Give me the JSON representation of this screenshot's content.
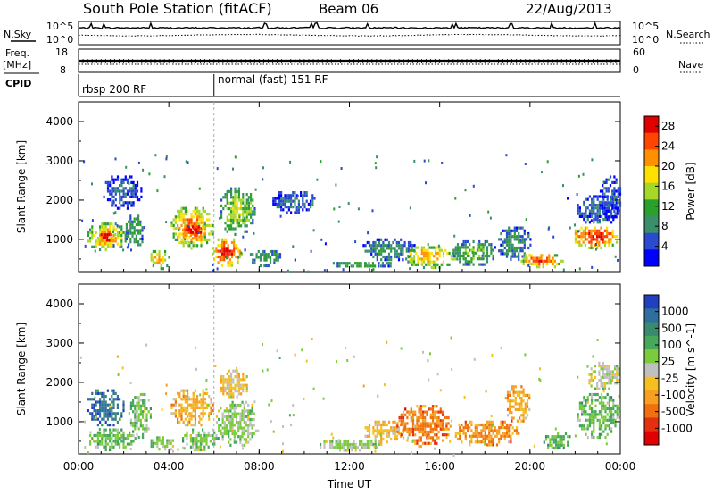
{
  "header": {
    "station": "South Pole Station (fitACF)",
    "beam": "Beam 06",
    "date": "22/Aug/2013"
  },
  "left_labels": {
    "nsky": "N.Sky",
    "freq_line1": "Freq.",
    "freq_line2": "[MHz]",
    "cpid": "CPID"
  },
  "right_labels": {
    "nsearch": "N.Search",
    "nave": "Nave"
  },
  "noise_panel": {
    "left_ticks": [
      "10^5",
      "10^0"
    ],
    "right_ticks": [
      "10^5",
      "10^0"
    ]
  },
  "freq_panel": {
    "left_ticks": [
      "18",
      "8"
    ],
    "right_ticks": [
      "60",
      "0"
    ]
  },
  "cpid_panel": {
    "modes": [
      {
        "label": "rbsp 200 RF",
        "start_hour": 0
      },
      {
        "label": "normal (fast) 151 RF",
        "start_hour": 6.0
      }
    ]
  },
  "colors": {
    "power_scale": [
      "#0000ff",
      "#2a4bd0",
      "#3a8f6a",
      "#2ca02c",
      "#a6d82a",
      "#ffe000",
      "#ff9000",
      "#ff4500",
      "#e00000"
    ],
    "velocity_scale": [
      "#2040c0",
      "#2e6fa0",
      "#3a8a6e",
      "#46a85a",
      "#7ccb3c",
      "#c0c0c0",
      "#f4c020",
      "#f5a020",
      "#f07010",
      "#e53010",
      "#e00000"
    ]
  },
  "chart_data": [
    {
      "type": "heatmap",
      "title": "",
      "xlabel": "",
      "ylabel": "Slant Range [km]",
      "xlim": [
        0,
        24
      ],
      "ylim": [
        180,
        4500
      ],
      "x_ticks": [
        "00:00",
        "04:00",
        "08:00",
        "12:00",
        "16:00",
        "20:00",
        "00:00"
      ],
      "y_ticks": [
        "1000",
        "2000",
        "3000",
        "4000"
      ],
      "colorbar": {
        "label": "Power [dB]",
        "ticks": [
          "4",
          "8",
          "12",
          "16",
          "20",
          "24",
          "28"
        ],
        "range": [
          0,
          30
        ]
      },
      "blobs": [
        {
          "t": [
            0.3,
            2.1
          ],
          "r": [
            700,
            1500
          ],
          "v": 18
        },
        {
          "t": [
            0.8,
            1.6
          ],
          "r": [
            900,
            1300
          ],
          "v": 26
        },
        {
          "t": [
            2.0,
            2.9
          ],
          "r": [
            800,
            1700
          ],
          "v": 10
        },
        {
          "t": [
            1.0,
            2.8
          ],
          "r": [
            1800,
            2700
          ],
          "v": 5
        },
        {
          "t": [
            3.1,
            4.0
          ],
          "r": [
            250,
            800
          ],
          "v": 18
        },
        {
          "t": [
            4.0,
            6.0
          ],
          "r": [
            800,
            1900
          ],
          "v": 20
        },
        {
          "t": [
            4.5,
            5.6
          ],
          "r": [
            1000,
            1500
          ],
          "v": 26
        },
        {
          "t": [
            5.8,
            7.2
          ],
          "r": [
            300,
            1100
          ],
          "v": 24
        },
        {
          "t": [
            6.2,
            7.8
          ],
          "r": [
            1100,
            2400
          ],
          "v": 14
        },
        {
          "t": [
            7.5,
            9.0
          ],
          "r": [
            350,
            800
          ],
          "v": 10
        },
        {
          "t": [
            8.5,
            10.5
          ],
          "r": [
            1700,
            2300
          ],
          "v": 6
        },
        {
          "t": [
            11.0,
            14.0
          ],
          "r": [
            300,
            500
          ],
          "v": 10
        },
        {
          "t": [
            12.5,
            15.0
          ],
          "r": [
            450,
            1100
          ],
          "v": 8
        },
        {
          "t": [
            14.3,
            16.8
          ],
          "r": [
            300,
            900
          ],
          "v": 18
        },
        {
          "t": [
            16.5,
            18.5
          ],
          "r": [
            350,
            1050
          ],
          "v": 12
        },
        {
          "t": [
            18.5,
            20.0
          ],
          "r": [
            500,
            1400
          ],
          "v": 8
        },
        {
          "t": [
            19.5,
            21.5
          ],
          "r": [
            300,
            700
          ],
          "v": 22
        },
        {
          "t": [
            21.8,
            24.0
          ],
          "r": [
            800,
            1400
          ],
          "v": 24
        },
        {
          "t": [
            22.0,
            24.0
          ],
          "r": [
            1400,
            2200
          ],
          "v": 6
        },
        {
          "t": [
            23.0,
            24.0
          ],
          "r": [
            1500,
            2700
          ],
          "v": 5
        }
      ]
    },
    {
      "type": "heatmap",
      "title": "",
      "xlabel": "Time UT",
      "ylabel": "Slant Range [km]",
      "xlim": [
        0,
        24
      ],
      "ylim": [
        180,
        4500
      ],
      "x_ticks": [
        "00:00",
        "04:00",
        "08:00",
        "12:00",
        "16:00",
        "20:00",
        "00:00"
      ],
      "y_ticks": [
        "1000",
        "2000",
        "3000",
        "4000"
      ],
      "colorbar": {
        "label": "Velocity [m s^-1]",
        "ticks": [
          "1000",
          "500",
          "100",
          "25",
          "-25",
          "-100",
          "-500",
          "-1000"
        ],
        "range": [
          -1000,
          1000
        ]
      },
      "blobs": [
        {
          "t": [
            0.3,
            2.0
          ],
          "r": [
            900,
            1900
          ],
          "v": 700
        },
        {
          "t": [
            0.3,
            2.5
          ],
          "r": [
            300,
            900
          ],
          "v": 300
        },
        {
          "t": [
            2.2,
            3.2
          ],
          "r": [
            600,
            1800
          ],
          "v": 200
        },
        {
          "t": [
            3.1,
            4.2
          ],
          "r": [
            250,
            700
          ],
          "v": 150
        },
        {
          "t": [
            4.0,
            6.0
          ],
          "r": [
            900,
            1900
          ],
          "v": -300
        },
        {
          "t": [
            4.5,
            6.2
          ],
          "r": [
            300,
            900
          ],
          "v": 200
        },
        {
          "t": [
            6.0,
            8.0
          ],
          "r": [
            400,
            1600
          ],
          "v": 150
        },
        {
          "t": [
            6.2,
            7.5
          ],
          "r": [
            1600,
            2400
          ],
          "v": -150
        },
        {
          "t": [
            10.5,
            13.5
          ],
          "r": [
            300,
            600
          ],
          "v": 80
        },
        {
          "t": [
            12.5,
            14.5
          ],
          "r": [
            500,
            1100
          ],
          "v": -200
        },
        {
          "t": [
            14.0,
            16.5
          ],
          "r": [
            400,
            1500
          ],
          "v": -500
        },
        {
          "t": [
            16.5,
            19.5
          ],
          "r": [
            400,
            1100
          ],
          "v": -400
        },
        {
          "t": [
            18.8,
            20.0
          ],
          "r": [
            1000,
            2000
          ],
          "v": -300
        },
        {
          "t": [
            20.5,
            21.8
          ],
          "r": [
            300,
            800
          ],
          "v": 300
        },
        {
          "t": [
            22.0,
            24.0
          ],
          "r": [
            600,
            1800
          ],
          "v": 250
        },
        {
          "t": [
            22.5,
            24.0
          ],
          "r": [
            1800,
            2600
          ],
          "v": 20
        }
      ]
    }
  ]
}
